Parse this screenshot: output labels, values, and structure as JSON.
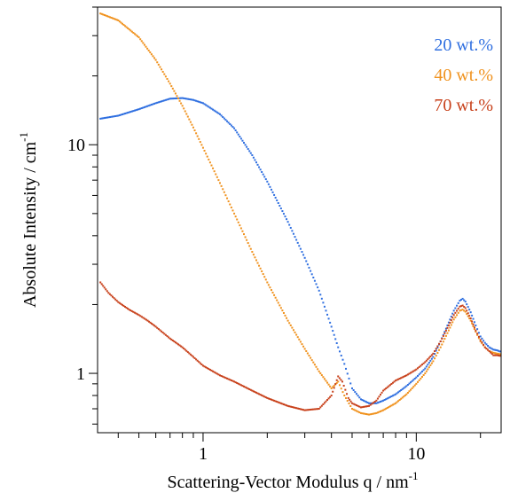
{
  "chart_data": {
    "type": "scatter",
    "title": "",
    "xlabel": "Scattering-Vector Modulus q / nm",
    "xlabel_sup": "-1",
    "ylabel": "Absolute Intensity / cm",
    "ylabel_sup": "-1",
    "xscale": "log",
    "yscale": "log",
    "xlim": [
      0.32,
      25
    ],
    "ylim": [
      0.55,
      40
    ],
    "x_tick_labels": [
      {
        "value": 1,
        "label": "1"
      },
      {
        "value": 10,
        "label": "10"
      }
    ],
    "y_tick_labels": [
      {
        "value": 1,
        "label": "1"
      },
      {
        "value": 10,
        "label": "10"
      }
    ],
    "grid": false,
    "legend_position": "top-right",
    "series": [
      {
        "name": "20 wt.%",
        "color": "#2f6fe0",
        "points": [
          [
            0.33,
            13.0
          ],
          [
            0.4,
            13.4
          ],
          [
            0.5,
            14.3
          ],
          [
            0.6,
            15.2
          ],
          [
            0.7,
            15.9
          ],
          [
            0.8,
            16.0
          ],
          [
            0.9,
            15.7
          ],
          [
            1.0,
            15.2
          ],
          [
            1.2,
            13.6
          ],
          [
            1.4,
            11.8
          ],
          [
            1.7,
            9.0
          ],
          [
            2.0,
            6.9
          ],
          [
            2.5,
            4.6
          ],
          [
            3.0,
            3.2
          ],
          [
            3.5,
            2.3
          ],
          [
            4.0,
            1.6
          ],
          [
            4.3,
            1.3
          ],
          [
            4.6,
            1.1
          ],
          [
            5.0,
            0.86
          ],
          [
            5.5,
            0.77
          ],
          [
            6.0,
            0.74
          ],
          [
            6.5,
            0.74
          ],
          [
            7.0,
            0.76
          ],
          [
            8.0,
            0.81
          ],
          [
            9.0,
            0.88
          ],
          [
            10.0,
            0.96
          ],
          [
            11.0,
            1.05
          ],
          [
            12.0,
            1.18
          ],
          [
            13.0,
            1.38
          ],
          [
            14.0,
            1.62
          ],
          [
            15.0,
            1.88
          ],
          [
            16.0,
            2.08
          ],
          [
            16.5,
            2.12
          ],
          [
            17.0,
            2.06
          ],
          [
            18.0,
            1.85
          ],
          [
            19.0,
            1.62
          ],
          [
            20.0,
            1.45
          ],
          [
            21.0,
            1.36
          ],
          [
            22.0,
            1.3
          ],
          [
            23.0,
            1.27
          ],
          [
            24.0,
            1.26
          ],
          [
            25.0,
            1.24
          ]
        ]
      },
      {
        "name": "40 wt.%",
        "color": "#f0921e",
        "points": [
          [
            0.33,
            37.5
          ],
          [
            0.4,
            35.0
          ],
          [
            0.5,
            29.5
          ],
          [
            0.6,
            23.5
          ],
          [
            0.7,
            18.5
          ],
          [
            0.8,
            14.8
          ],
          [
            0.9,
            11.9
          ],
          [
            1.0,
            9.7
          ],
          [
            1.2,
            6.8
          ],
          [
            1.4,
            5.0
          ],
          [
            1.7,
            3.4
          ],
          [
            2.0,
            2.5
          ],
          [
            2.5,
            1.7
          ],
          [
            3.0,
            1.28
          ],
          [
            3.5,
            1.02
          ],
          [
            4.0,
            0.86
          ],
          [
            4.3,
            0.92
          ],
          [
            4.6,
            0.8
          ],
          [
            5.0,
            0.7
          ],
          [
            5.5,
            0.67
          ],
          [
            6.0,
            0.66
          ],
          [
            6.5,
            0.67
          ],
          [
            7.0,
            0.69
          ],
          [
            8.0,
            0.74
          ],
          [
            9.0,
            0.81
          ],
          [
            10.0,
            0.9
          ],
          [
            11.0,
            1.0
          ],
          [
            12.0,
            1.13
          ],
          [
            13.0,
            1.3
          ],
          [
            14.0,
            1.5
          ],
          [
            15.0,
            1.72
          ],
          [
            16.0,
            1.88
          ],
          [
            16.5,
            1.9
          ],
          [
            17.0,
            1.86
          ],
          [
            18.0,
            1.7
          ],
          [
            19.0,
            1.52
          ],
          [
            20.0,
            1.38
          ],
          [
            21.0,
            1.3
          ],
          [
            22.0,
            1.25
          ],
          [
            23.0,
            1.23
          ],
          [
            24.0,
            1.22
          ],
          [
            25.0,
            1.21
          ]
        ]
      },
      {
        "name": "70 wt.%",
        "color": "#c8411b",
        "points": [
          [
            0.33,
            2.5
          ],
          [
            0.36,
            2.25
          ],
          [
            0.4,
            2.05
          ],
          [
            0.45,
            1.9
          ],
          [
            0.5,
            1.8
          ],
          [
            0.55,
            1.7
          ],
          [
            0.6,
            1.6
          ],
          [
            0.7,
            1.42
          ],
          [
            0.8,
            1.3
          ],
          [
            0.9,
            1.18
          ],
          [
            1.0,
            1.08
          ],
          [
            1.2,
            0.98
          ],
          [
            1.4,
            0.92
          ],
          [
            1.7,
            0.84
          ],
          [
            2.0,
            0.78
          ],
          [
            2.5,
            0.72
          ],
          [
            3.0,
            0.69
          ],
          [
            3.5,
            0.7
          ],
          [
            4.0,
            0.8
          ],
          [
            4.3,
            0.97
          ],
          [
            4.5,
            0.92
          ],
          [
            4.8,
            0.78
          ],
          [
            5.0,
            0.74
          ],
          [
            5.5,
            0.71
          ],
          [
            6.0,
            0.72
          ],
          [
            6.5,
            0.76
          ],
          [
            7.0,
            0.84
          ],
          [
            8.0,
            0.93
          ],
          [
            9.0,
            0.98
          ],
          [
            10.0,
            1.04
          ],
          [
            11.0,
            1.12
          ],
          [
            12.0,
            1.22
          ],
          [
            13.0,
            1.38
          ],
          [
            14.0,
            1.58
          ],
          [
            15.0,
            1.8
          ],
          [
            16.0,
            1.96
          ],
          [
            16.5,
            1.98
          ],
          [
            17.0,
            1.93
          ],
          [
            18.0,
            1.74
          ],
          [
            19.0,
            1.54
          ],
          [
            20.0,
            1.4
          ],
          [
            21.0,
            1.3
          ],
          [
            22.0,
            1.25
          ],
          [
            23.0,
            1.2
          ],
          [
            24.0,
            1.2
          ],
          [
            25.0,
            1.19
          ]
        ]
      }
    ]
  }
}
